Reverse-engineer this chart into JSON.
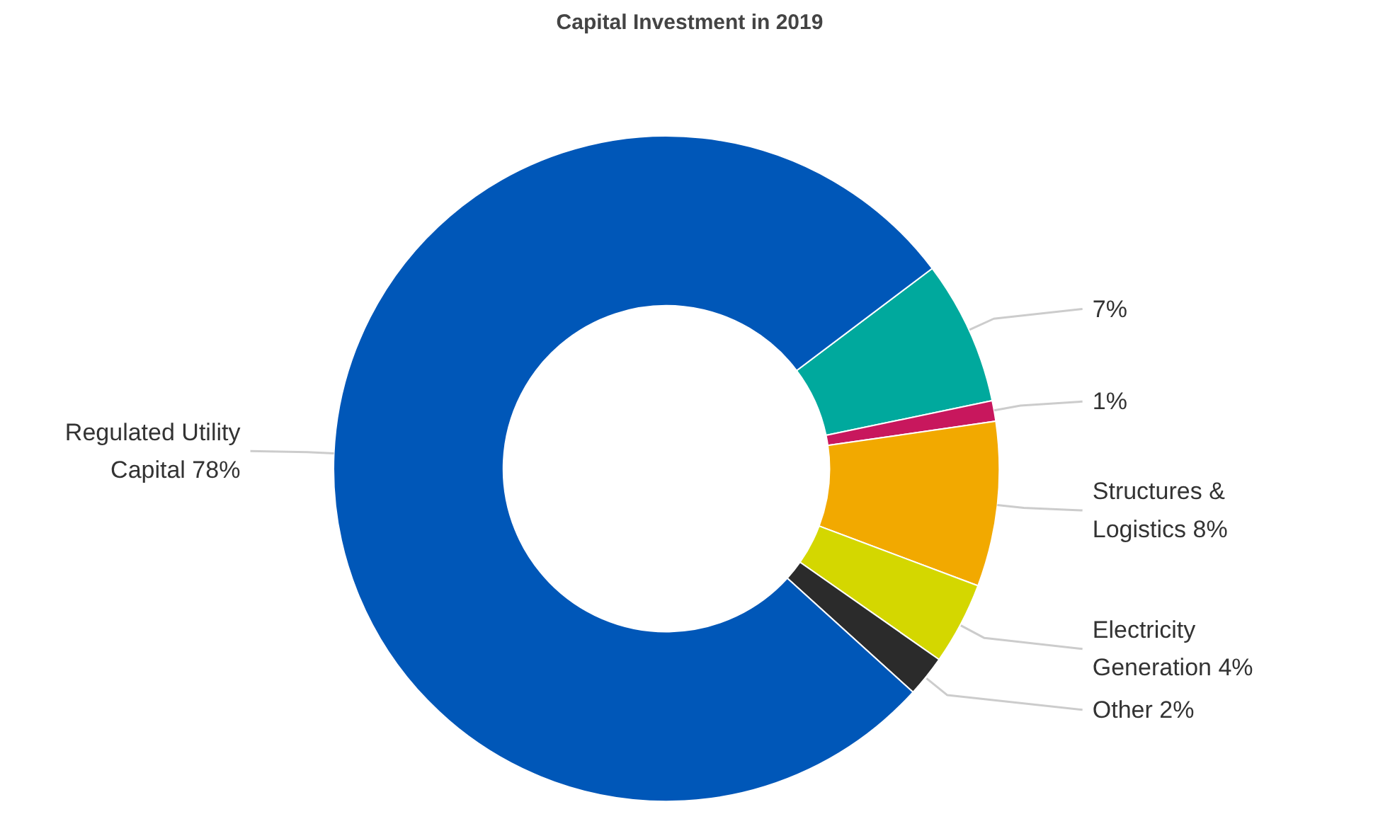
{
  "chart_data": {
    "type": "donut",
    "title": "Capital Investment in 2019",
    "categories": [
      null,
      null,
      "Structures & Logistics",
      "Electricity Generation",
      "Other",
      "Regulated Utility Capital"
    ],
    "values": [
      7,
      1,
      8,
      4,
      2,
      78
    ],
    "colors": [
      "#00a99d",
      "#c8175d",
      "#f2a900",
      "#d4d700",
      "#2b2b2b",
      "#0057b8"
    ],
    "value_labels": [
      "7%",
      "1%",
      "8%",
      "4%",
      "2%",
      "78%"
    ]
  }
}
